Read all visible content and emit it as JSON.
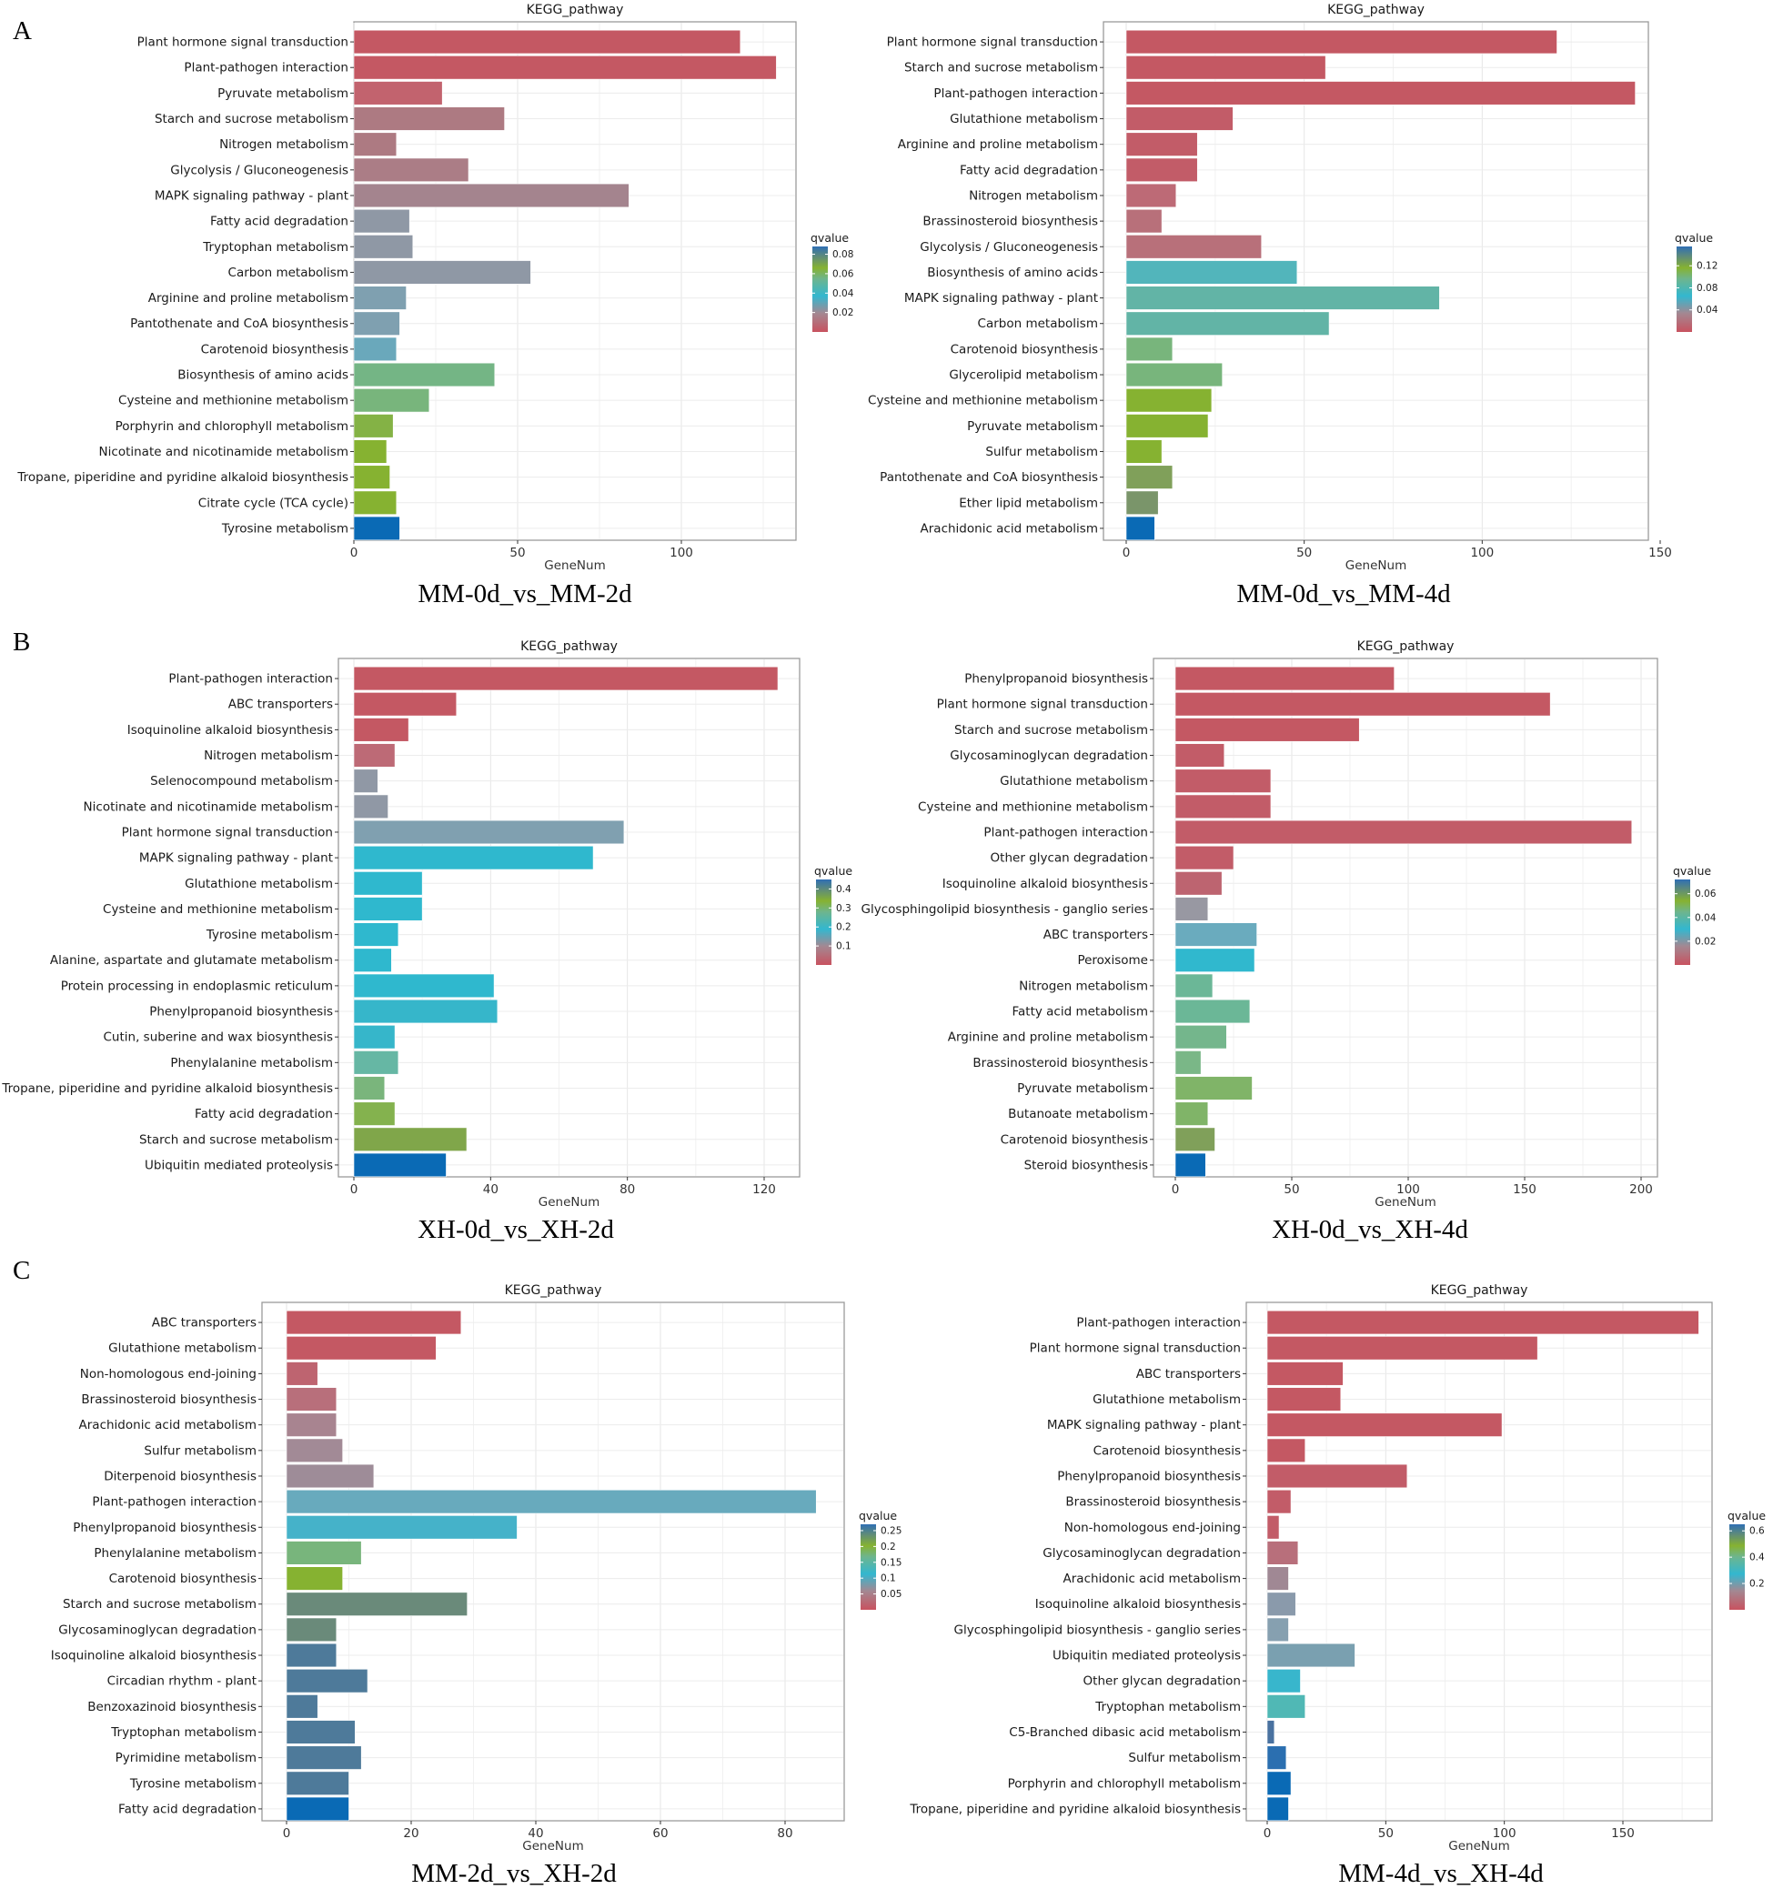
{
  "figure": {
    "panel_letters": [
      "A",
      "B",
      "C"
    ]
  },
  "chart_data": [
    {
      "id": "a_left",
      "type": "bar",
      "orientation": "horizontal",
      "title": "KEGG_pathway",
      "subtitle": "MM-0d_vs_MM-2d",
      "xlabel": "GeneNum",
      "ylabel": "",
      "xlim": [
        0,
        135
      ],
      "xticks": [
        0,
        50,
        100
      ],
      "grid": true,
      "legend": {
        "title": "qvalue",
        "position": "right",
        "ticks": [
          0.02,
          0.04,
          0.06,
          0.08
        ],
        "range": [
          0.0,
          0.088
        ]
      },
      "categories": [
        "Plant hormone signal transduction",
        "Plant-pathogen interaction",
        "Pyruvate metabolism",
        "Starch and sucrose metabolism",
        "Nitrogen metabolism",
        "Glycolysis / Gluconeogenesis",
        "MAPK signaling pathway - plant",
        "Fatty acid degradation",
        "Tryptophan metabolism",
        "Carbon metabolism",
        "Arginine and proline metabolism",
        "Pantothenate and CoA biosynthesis",
        "Carotenoid biosynthesis",
        "Biosynthesis of amino acids",
        "Cysteine and methionine metabolism",
        "Porphyrin and chlorophyll metabolism",
        "Nicotinate and nicotinamide metabolism",
        "Tropane, piperidine and pyridine alkaloid biosynthesis",
        "Citrate cycle (TCA cycle)",
        "Tyrosine metabolism"
      ],
      "values": [
        118,
        129,
        27,
        46,
        13,
        35,
        84,
        17,
        18,
        54,
        16,
        14,
        13,
        43,
        23,
        12,
        10,
        11,
        13,
        14
      ],
      "colors": [
        "#c45863",
        "#c45863",
        "#c2636e",
        "#ad7a82",
        "#ad7a82",
        "#ab7d86",
        "#a4848e",
        "#8f98a5",
        "#8f98a5",
        "#8f98a5",
        "#7fa0b0",
        "#7fa0b0",
        "#6aa8bb",
        "#74b585",
        "#78b57c",
        "#84b245",
        "#86b231",
        "#86b231",
        "#86b231",
        "#0a6ab5"
      ]
    },
    {
      "id": "a_right",
      "type": "bar",
      "orientation": "horizontal",
      "title": "KEGG_pathway",
      "subtitle": "MM-0d_vs_MM-4d",
      "xlabel": "GeneNum",
      "ylabel": "",
      "xlim": [
        0,
        150
      ],
      "xticks": [
        0,
        50,
        100,
        150
      ],
      "grid": true,
      "legend": {
        "title": "qvalue",
        "position": "right",
        "ticks": [
          0.04,
          0.08,
          0.12
        ],
        "range": [
          0.0,
          0.155
        ]
      },
      "categories": [
        "Plant hormone signal transduction",
        "Starch and sucrose metabolism",
        "Plant-pathogen interaction",
        "Glutathione metabolism",
        "Arginine and proline metabolism",
        "Fatty acid degradation",
        "Nitrogen metabolism",
        "Brassinosteroid biosynthesis",
        "Glycolysis / Gluconeogenesis",
        "Biosynthesis of amino acids",
        "MAPK signaling pathway - plant",
        "Carbon metabolism",
        "Carotenoid biosynthesis",
        "Glycerolipid metabolism",
        "Cysteine and methionine metabolism",
        "Pyruvate metabolism",
        "Sulfur metabolism",
        "Pantothenate and CoA biosynthesis",
        "Ether lipid metabolism",
        "Arachidonic acid metabolism"
      ],
      "values": [
        121,
        56,
        143,
        30,
        20,
        20,
        14,
        10,
        38,
        48,
        88,
        57,
        13,
        27,
        24,
        23,
        10,
        13,
        9,
        8
      ],
      "colors": [
        "#c45863",
        "#c45863",
        "#c45863",
        "#c25c68",
        "#c25c68",
        "#c25c68",
        "#bd6a76",
        "#b8707a",
        "#b8707a",
        "#52b5bb",
        "#62b4a6",
        "#62b4a6",
        "#78b57c",
        "#78b57c",
        "#86b231",
        "#86b231",
        "#86b231",
        "#80a05a",
        "#7a956a",
        "#0a6ab5"
      ]
    },
    {
      "id": "b_left",
      "type": "bar",
      "orientation": "horizontal",
      "title": "KEGG_pathway",
      "subtitle": "XH-0d_vs_XH-2d",
      "xlabel": "GeneNum",
      "ylabel": "",
      "xlim": [
        0,
        130
      ],
      "xticks": [
        0,
        40,
        80,
        120
      ],
      "grid": true,
      "legend": {
        "title": "qvalue",
        "position": "right",
        "ticks": [
          0.1,
          0.2,
          0.3,
          0.4
        ],
        "range": [
          0.0,
          0.45
        ]
      },
      "categories": [
        "Plant-pathogen interaction",
        "ABC transporters",
        "Isoquinoline alkaloid biosynthesis",
        "Nitrogen metabolism",
        "Selenocompound metabolism",
        "Nicotinate and nicotinamide metabolism",
        "Plant hormone signal transduction",
        "MAPK signaling pathway - plant",
        "Glutathione metabolism",
        "Cysteine and methionine metabolism",
        "Tyrosine metabolism",
        "Alanine, aspartate and glutamate metabolism",
        "Protein processing in endoplasmic reticulum",
        "Phenylpropanoid biosynthesis",
        "Cutin, suberine and wax biosynthesis",
        "Phenylalanine metabolism",
        "Tropane, piperidine and pyridine alkaloid biosynthesis",
        "Fatty acid degradation",
        "Starch and sucrose metabolism",
        "Ubiquitin mediated proteolysis"
      ],
      "values": [
        124,
        30,
        16,
        12,
        7,
        10,
        79,
        70,
        20,
        20,
        13,
        11,
        41,
        42,
        12,
        13,
        9,
        12,
        33,
        27
      ],
      "colors": [
        "#c45863",
        "#c45863",
        "#c45863",
        "#bd6a76",
        "#9098a5",
        "#9098a5",
        "#80a0b0",
        "#2fb8ce",
        "#2fb8ce",
        "#2fb8ce",
        "#2fb8ce",
        "#2fb8ce",
        "#2fb8ce",
        "#36b6ca",
        "#36b6ca",
        "#66b7a4",
        "#7ab57c",
        "#84b24e",
        "#80a64a",
        "#0a6ab5"
      ]
    },
    {
      "id": "b_right",
      "type": "bar",
      "orientation": "horizontal",
      "title": "KEGG_pathway",
      "subtitle": "XH-0d_vs_XH-4d",
      "xlabel": "GeneNum",
      "ylabel": "",
      "xlim": [
        0,
        206
      ],
      "xticks": [
        0,
        50,
        100,
        150,
        200
      ],
      "grid": true,
      "legend": {
        "title": "qvalue",
        "position": "right",
        "ticks": [
          0.02,
          0.04,
          0.06
        ],
        "range": [
          0.0,
          0.072
        ]
      },
      "categories": [
        "Phenylpropanoid biosynthesis",
        "Plant hormone signal transduction",
        "Starch and sucrose metabolism",
        "Glycosaminoglycan degradation",
        "Glutathione metabolism",
        "Cysteine and methionine metabolism",
        "Plant-pathogen interaction",
        "Other glycan degradation",
        "Isoquinoline alkaloid biosynthesis",
        "Glycosphingolipid biosynthesis - ganglio series",
        "ABC transporters",
        "Peroxisome",
        "Nitrogen metabolism",
        "Fatty acid metabolism",
        "Arginine and proline metabolism",
        "Brassinosteroid biosynthesis",
        "Pyruvate metabolism",
        "Butanoate metabolism",
        "Carotenoid biosynthesis",
        "Steroid biosynthesis"
      ],
      "values": [
        94,
        161,
        79,
        21,
        41,
        41,
        196,
        25,
        20,
        14,
        35,
        34,
        16,
        32,
        22,
        11,
        33,
        14,
        17,
        13
      ],
      "colors": [
        "#c45863",
        "#c45863",
        "#c45863",
        "#c25c68",
        "#c25c68",
        "#c25c68",
        "#c25c68",
        "#c25c68",
        "#bd6470",
        "#9898a2",
        "#6aabbe",
        "#30b8ce",
        "#6bb797",
        "#6bb797",
        "#74b68c",
        "#7ab787",
        "#80b468",
        "#80b468",
        "#80a05a",
        "#0a6ab5"
      ]
    },
    {
      "id": "c_left",
      "type": "bar",
      "orientation": "horizontal",
      "title": "KEGG_pathway",
      "subtitle": "MM-2d_vs_XH-2d",
      "xlabel": "GeneNum",
      "ylabel": "",
      "xlim": [
        0,
        89
      ],
      "xticks": [
        0,
        20,
        40,
        60,
        80
      ],
      "grid": true,
      "legend": {
        "title": "qvalue",
        "position": "right",
        "ticks": [
          0.05,
          0.1,
          0.15,
          0.2,
          0.25
        ],
        "range": [
          0.0,
          0.27
        ]
      },
      "categories": [
        "ABC transporters",
        "Glutathione metabolism",
        "Non-homologous end-joining",
        "Brassinosteroid biosynthesis",
        "Arachidonic acid metabolism",
        "Sulfur metabolism",
        "Diterpenoid biosynthesis",
        "Plant-pathogen interaction",
        "Phenylpropanoid biosynthesis",
        "Phenylalanine metabolism",
        "Carotenoid biosynthesis",
        "Starch and sucrose metabolism",
        "Glycosaminoglycan degradation",
        "Isoquinoline alkaloid biosynthesis",
        "Circadian rhythm - plant",
        "Benzoxazinoid biosynthesis",
        "Tryptophan metabolism",
        "Pyrimidine metabolism",
        "Tyrosine metabolism",
        "Fatty acid degradation"
      ],
      "values": [
        28,
        24,
        5,
        8,
        8,
        9,
        14,
        85,
        37,
        12,
        9,
        29,
        8,
        8,
        13,
        5,
        11,
        12,
        10,
        10
      ],
      "colors": [
        "#c45863",
        "#c45863",
        "#be6470",
        "#b86f7b",
        "#a88490",
        "#a28a96",
        "#9e8c98",
        "#68aabd",
        "#45b2c9",
        "#78b57c",
        "#86b231",
        "#6a8a7a",
        "#6a8a7a",
        "#4e7a9a",
        "#4e7a9a",
        "#4e7a9a",
        "#4e7a9a",
        "#4e7a9a",
        "#4e7a9a",
        "#0a6ab5"
      ]
    },
    {
      "id": "c_right",
      "type": "bar",
      "orientation": "horizontal",
      "title": "KEGG_pathway",
      "subtitle": "MM-4d_vs_XH-4d",
      "xlabel": "GeneNum",
      "ylabel": "",
      "xlim": [
        0,
        190
      ],
      "xticks": [
        0,
        50,
        100,
        150
      ],
      "grid": true,
      "legend": {
        "title": "qvalue",
        "position": "right",
        "ticks": [
          0.2,
          0.4,
          0.6
        ],
        "range": [
          0.0,
          0.65
        ]
      },
      "categories": [
        "Plant-pathogen interaction",
        "Plant hormone signal transduction",
        "ABC transporters",
        "Glutathione metabolism",
        "MAPK signaling pathway - plant",
        "Carotenoid biosynthesis",
        "Phenylpropanoid biosynthesis",
        "Brassinosteroid biosynthesis",
        "Non-homologous end-joining",
        "Glycosaminoglycan degradation",
        "Arachidonic acid metabolism",
        "Isoquinoline alkaloid biosynthesis",
        "Glycosphingolipid biosynthesis - ganglio series",
        "Ubiquitin mediated proteolysis",
        "Other glycan degradation",
        "Tryptophan metabolism",
        "C5-Branched dibasic acid metabolism",
        "Sulfur metabolism",
        "Porphyrin and chlorophyll metabolism",
        "Tropane, piperidine and pyridine alkaloid biosynthesis"
      ],
      "values": [
        182,
        114,
        32,
        31,
        99,
        16,
        59,
        10,
        5,
        13,
        9,
        12,
        9,
        37,
        14,
        16,
        3,
        8,
        10,
        9
      ],
      "colors": [
        "#c45863",
        "#c45863",
        "#c45863",
        "#c45863",
        "#c45863",
        "#c45863",
        "#c25c68",
        "#c25c68",
        "#c25c68",
        "#b86f7b",
        "#a08894",
        "#8a9aab",
        "#86a0b0",
        "#7aa0b0",
        "#38b6cc",
        "#50b8b5",
        "#4a72a0",
        "#2b6fb0",
        "#0a6ab5",
        "#0a6ab5"
      ]
    }
  ]
}
